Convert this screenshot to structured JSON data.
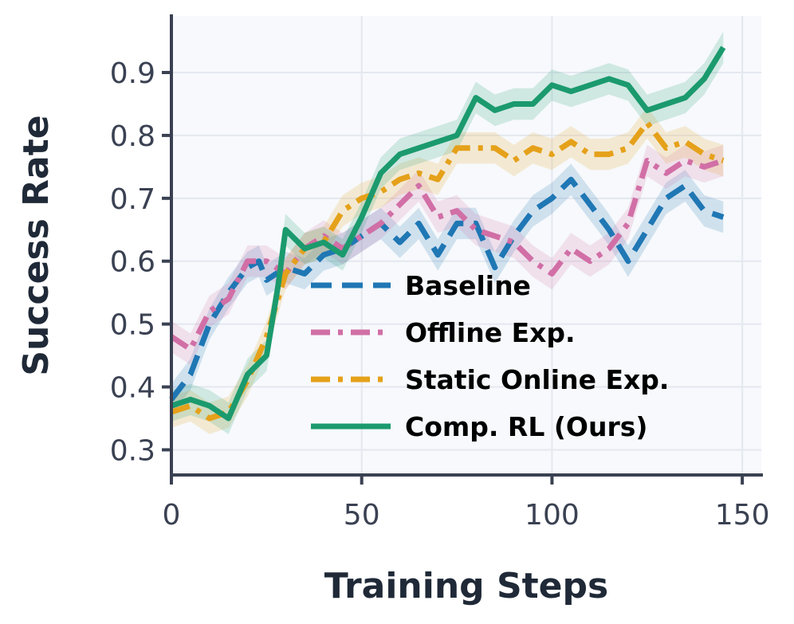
{
  "chart_data": {
    "type": "line",
    "title": "",
    "xlabel": "Training Steps",
    "ylabel": "Success Rate",
    "xlim": [
      0,
      155
    ],
    "ylim": [
      0.26,
      0.99
    ],
    "xticks": [
      0,
      50,
      100,
      150
    ],
    "xtick_labels": [
      "0",
      "50",
      "100",
      "150"
    ],
    "yticks": [
      0.3,
      0.4,
      0.5,
      0.6,
      0.7,
      0.8,
      0.9
    ],
    "ytick_labels": [
      "0.3",
      "0.4",
      "0.5",
      "0.6",
      "0.7",
      "0.8",
      "0.9"
    ],
    "grid": true,
    "legend_position": "lower-right",
    "series": [
      {
        "name": "Baseline",
        "color": "#1f77b4",
        "dash": "dashed",
        "points": [
          [
            0,
            0.38
          ],
          [
            5,
            0.42
          ],
          [
            10,
            0.5
          ],
          [
            15,
            0.55
          ],
          [
            20,
            0.59
          ],
          [
            23,
            0.6
          ],
          [
            25,
            0.57
          ],
          [
            30,
            0.59
          ],
          [
            35,
            0.58
          ],
          [
            40,
            0.61
          ],
          [
            45,
            0.62
          ],
          [
            50,
            0.64
          ],
          [
            55,
            0.66
          ],
          [
            60,
            0.63
          ],
          [
            65,
            0.66
          ],
          [
            70,
            0.61
          ],
          [
            75,
            0.66
          ],
          [
            80,
            0.66
          ],
          [
            85,
            0.59
          ],
          [
            90,
            0.64
          ],
          [
            95,
            0.68
          ],
          [
            100,
            0.7
          ],
          [
            105,
            0.73
          ],
          [
            110,
            0.69
          ],
          [
            115,
            0.65
          ],
          [
            120,
            0.6
          ],
          [
            125,
            0.65
          ],
          [
            130,
            0.7
          ],
          [
            135,
            0.72
          ],
          [
            140,
            0.68
          ],
          [
            145,
            0.67
          ]
        ]
      },
      {
        "name": "Offline Exp.",
        "color": "#d16fa6",
        "dash": "dashdot",
        "points": [
          [
            0,
            0.48
          ],
          [
            5,
            0.46
          ],
          [
            10,
            0.52
          ],
          [
            15,
            0.54
          ],
          [
            20,
            0.6
          ],
          [
            25,
            0.6
          ],
          [
            30,
            0.58
          ],
          [
            35,
            0.62
          ],
          [
            40,
            0.64
          ],
          [
            45,
            0.62
          ],
          [
            50,
            0.64
          ],
          [
            55,
            0.66
          ],
          [
            60,
            0.69
          ],
          [
            65,
            0.72
          ],
          [
            70,
            0.67
          ],
          [
            75,
            0.68
          ],
          [
            80,
            0.65
          ],
          [
            85,
            0.64
          ],
          [
            90,
            0.63
          ],
          [
            95,
            0.6
          ],
          [
            100,
            0.58
          ],
          [
            105,
            0.62
          ],
          [
            110,
            0.6
          ],
          [
            115,
            0.62
          ],
          [
            120,
            0.66
          ],
          [
            125,
            0.76
          ],
          [
            130,
            0.74
          ],
          [
            135,
            0.76
          ],
          [
            140,
            0.75
          ],
          [
            145,
            0.76
          ]
        ]
      },
      {
        "name": "Static Online Exp.",
        "color": "#e5a11a",
        "dash": "dashdot",
        "points": [
          [
            0,
            0.36
          ],
          [
            5,
            0.37
          ],
          [
            10,
            0.35
          ],
          [
            15,
            0.36
          ],
          [
            20,
            0.41
          ],
          [
            25,
            0.48
          ],
          [
            30,
            0.58
          ],
          [
            35,
            0.62
          ],
          [
            40,
            0.63
          ],
          [
            45,
            0.68
          ],
          [
            50,
            0.7
          ],
          [
            55,
            0.71
          ],
          [
            60,
            0.73
          ],
          [
            65,
            0.74
          ],
          [
            70,
            0.73
          ],
          [
            75,
            0.78
          ],
          [
            80,
            0.78
          ],
          [
            85,
            0.78
          ],
          [
            90,
            0.76
          ],
          [
            95,
            0.78
          ],
          [
            100,
            0.77
          ],
          [
            105,
            0.79
          ],
          [
            110,
            0.77
          ],
          [
            115,
            0.77
          ],
          [
            120,
            0.78
          ],
          [
            125,
            0.82
          ],
          [
            130,
            0.78
          ],
          [
            135,
            0.79
          ],
          [
            140,
            0.77
          ],
          [
            145,
            0.76
          ]
        ]
      },
      {
        "name": "Comp. RL (Ours)",
        "color": "#1b9a6e",
        "dash": "solid",
        "points": [
          [
            0,
            0.37
          ],
          [
            5,
            0.38
          ],
          [
            10,
            0.37
          ],
          [
            15,
            0.35
          ],
          [
            20,
            0.42
          ],
          [
            25,
            0.45
          ],
          [
            28,
            0.56
          ],
          [
            30,
            0.65
          ],
          [
            35,
            0.62
          ],
          [
            40,
            0.63
          ],
          [
            45,
            0.61
          ],
          [
            50,
            0.67
          ],
          [
            55,
            0.74
          ],
          [
            60,
            0.77
          ],
          [
            65,
            0.78
          ],
          [
            70,
            0.79
          ],
          [
            75,
            0.8
          ],
          [
            80,
            0.86
          ],
          [
            85,
            0.84
          ],
          [
            90,
            0.85
          ],
          [
            95,
            0.85
          ],
          [
            100,
            0.88
          ],
          [
            105,
            0.87
          ],
          [
            110,
            0.88
          ],
          [
            115,
            0.89
          ],
          [
            120,
            0.88
          ],
          [
            125,
            0.84
          ],
          [
            130,
            0.85
          ],
          [
            135,
            0.86
          ],
          [
            140,
            0.89
          ],
          [
            145,
            0.94
          ]
        ]
      }
    ]
  }
}
